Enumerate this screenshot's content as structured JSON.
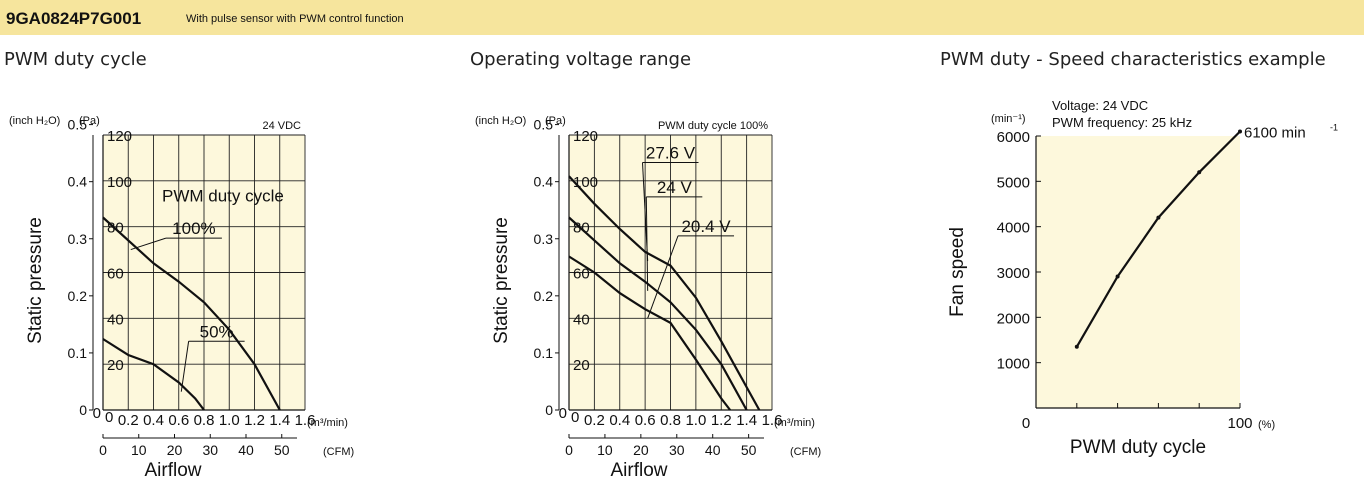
{
  "header": {
    "model": "9GA0824P7G001",
    "description": "With pulse sensor with PWM control function",
    "bg_color": "#f6e59d"
  },
  "plot_bg_color": "#fdf8dc",
  "chart_data": [
    {
      "type": "line",
      "title": "PWM duty cycle",
      "condition": "24 VDC",
      "ylabel": "Static pressure",
      "xlabel": "Airflow",
      "x_unit_main": "(m³/min)",
      "x_unit_secondary": "(CFM)",
      "y_unit_main": "(Pa)",
      "y_unit_secondary": "(inch H₂O)",
      "xlim": [
        0,
        1.6
      ],
      "ylim": [
        0,
        120
      ],
      "x_ticks": [
        "0.2",
        "0.4",
        "0.6",
        "0.8",
        "1.0",
        "1.2",
        "1.4",
        "1.6"
      ],
      "x_zero_label": "0",
      "y_ticks": [
        "20",
        "40",
        "60",
        "80",
        "100",
        "120"
      ],
      "y_zero_label": "0",
      "secondary_x_ticks": [
        "0",
        "10",
        "20",
        "30",
        "40",
        "50"
      ],
      "secondary_x_factor": 35.3147,
      "secondary_y_ticks": [
        "0",
        "0.1",
        "0.2",
        "0.3",
        "0.4",
        "0.5"
      ],
      "secondary_y_factor": 0.0040146,
      "legend_title": "PWM duty cycle",
      "series": [
        {
          "name": "100%",
          "label_at": [
            0.72,
            75
          ],
          "points": [
            [
              0,
              84
            ],
            [
              0.2,
              74
            ],
            [
              0.4,
              64
            ],
            [
              0.6,
              56
            ],
            [
              0.8,
              47
            ],
            [
              1.0,
              35
            ],
            [
              1.2,
              20
            ],
            [
              1.4,
              0
            ]
          ]
        },
        {
          "name": "50%",
          "label_at": [
            0.9,
            30
          ],
          "points": [
            [
              0,
              31
            ],
            [
              0.2,
              24
            ],
            [
              0.4,
              20
            ],
            [
              0.6,
              12
            ],
            [
              0.73,
              5
            ],
            [
              0.8,
              0
            ]
          ]
        }
      ]
    },
    {
      "type": "line",
      "title": "Operating voltage range",
      "condition": "PWM duty cycle 100%",
      "ylabel": "Static pressure",
      "xlabel": "Airflow",
      "x_unit_main": "(m³/min)",
      "x_unit_secondary": "(CFM)",
      "y_unit_main": "(Pa)",
      "y_unit_secondary": "(inch H₂O)",
      "xlim": [
        0,
        1.6
      ],
      "ylim": [
        0,
        120
      ],
      "x_ticks": [
        "0.2",
        "0.4",
        "0.6",
        "0.8",
        "1.0",
        "1.2",
        "1.4",
        "1.6"
      ],
      "x_zero_label": "0",
      "y_ticks": [
        "20",
        "40",
        "60",
        "80",
        "100",
        "120"
      ],
      "y_zero_label": "0",
      "secondary_x_ticks": [
        "0",
        "10",
        "20",
        "30",
        "40",
        "50"
      ],
      "secondary_x_factor": 35.3147,
      "secondary_y_ticks": [
        "0",
        "0.1",
        "0.2",
        "0.3",
        "0.4",
        "0.5"
      ],
      "secondary_y_factor": 0.0040146,
      "series": [
        {
          "name": "27.6 V",
          "label_at": [
            0.8,
            108
          ],
          "points": [
            [
              0,
              102
            ],
            [
              0.2,
              90
            ],
            [
              0.4,
              79
            ],
            [
              0.6,
              69
            ],
            [
              0.8,
              63
            ],
            [
              1.0,
              49
            ],
            [
              1.2,
              30
            ],
            [
              1.4,
              10
            ],
            [
              1.5,
              0
            ]
          ]
        },
        {
          "name": "24 V",
          "label_at": [
            0.83,
            93
          ],
          "points": [
            [
              0,
              84
            ],
            [
              0.2,
              74
            ],
            [
              0.4,
              64
            ],
            [
              0.6,
              56
            ],
            [
              0.8,
              47
            ],
            [
              1.0,
              35
            ],
            [
              1.2,
              20
            ],
            [
              1.4,
              0
            ]
          ]
        },
        {
          "name": "20.4 V",
          "label_at": [
            1.08,
            76
          ],
          "points": [
            [
              0,
              67
            ],
            [
              0.2,
              60
            ],
            [
              0.4,
              51
            ],
            [
              0.6,
              44
            ],
            [
              0.8,
              38
            ],
            [
              1.0,
              22
            ],
            [
              1.2,
              5
            ],
            [
              1.27,
              0
            ]
          ]
        }
      ]
    },
    {
      "type": "line",
      "title": "PWM duty - Speed characteristics example",
      "condition_lines": [
        "Voltage: 24 VDC",
        "PWM frequency: 25 kHz"
      ],
      "ylabel": "Fan speed",
      "xlabel": "PWM duty cycle",
      "y_unit": "(min⁻¹)",
      "x_unit": "(%)",
      "xlim": [
        0,
        100
      ],
      "ylim": [
        0,
        6000
      ],
      "x_ticks": [
        "100"
      ],
      "x_zero_label": "0",
      "y_ticks": [
        "1000",
        "2000",
        "3000",
        "4000",
        "5000",
        "6000"
      ],
      "points": [
        [
          20,
          1350
        ],
        [
          40,
          2900
        ],
        [
          60,
          4200
        ],
        [
          80,
          5200
        ],
        [
          100,
          6100
        ]
      ],
      "end_label": "6100 min",
      "end_label_sup": "-1"
    }
  ]
}
